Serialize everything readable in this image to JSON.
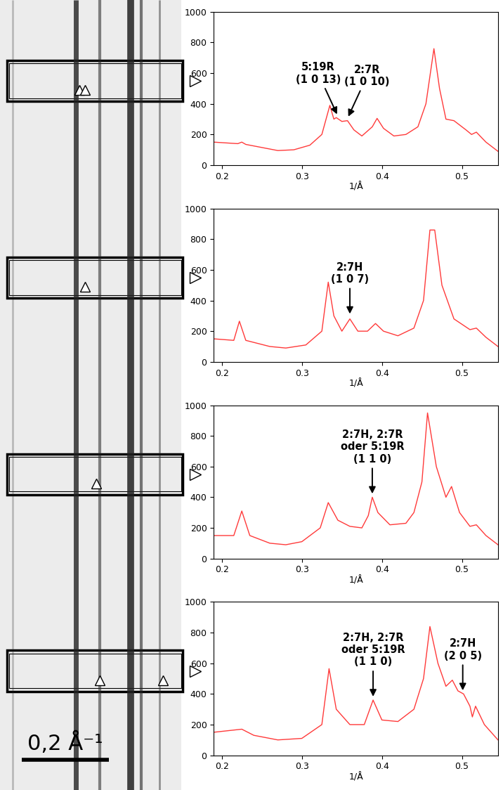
{
  "image_panel": {
    "scale_bar": "0,2 Å⁻¹"
  },
  "chart_data": [
    {
      "type": "line",
      "color": "#ff3a3a",
      "x_label": "1/Å",
      "xlim": [
        0.19,
        0.545
      ],
      "xticks": [
        0.2,
        0.3,
        0.4,
        0.5
      ],
      "ylim": [
        0,
        1000
      ],
      "yticks": [
        0,
        200,
        400,
        600,
        800,
        1000
      ],
      "x": [
        0.19,
        0.22,
        0.225,
        0.23,
        0.27,
        0.29,
        0.31,
        0.325,
        0.335,
        0.34,
        0.343,
        0.35,
        0.357,
        0.365,
        0.375,
        0.388,
        0.394,
        0.402,
        0.415,
        0.43,
        0.445,
        0.455,
        0.465,
        0.472,
        0.48,
        0.49,
        0.505,
        0.512,
        0.518,
        0.53,
        0.545
      ],
      "values": [
        150,
        140,
        150,
        135,
        95,
        100,
        130,
        200,
        390,
        300,
        310,
        285,
        290,
        230,
        190,
        250,
        305,
        240,
        190,
        200,
        250,
        400,
        760,
        500,
        300,
        290,
        230,
        200,
        215,
        150,
        90
      ],
      "annotations": [
        {
          "text": "5:19R\n(1 0 13)",
          "x": 0.345,
          "y": 320
        },
        {
          "text": "2:7R\n(1 0 10)",
          "x": 0.357,
          "y": 305
        }
      ]
    },
    {
      "type": "line",
      "color": "#ff3a3a",
      "x_label": "1/Å",
      "xlim": [
        0.19,
        0.545
      ],
      "xticks": [
        0.2,
        0.3,
        0.4,
        0.5
      ],
      "ylim": [
        0,
        1000
      ],
      "yticks": [
        0,
        200,
        400,
        600,
        800,
        1000
      ],
      "x": [
        0.19,
        0.215,
        0.222,
        0.23,
        0.26,
        0.28,
        0.305,
        0.325,
        0.333,
        0.34,
        0.35,
        0.36,
        0.37,
        0.382,
        0.392,
        0.402,
        0.42,
        0.44,
        0.452,
        0.46,
        0.466,
        0.475,
        0.49,
        0.51,
        0.518,
        0.53,
        0.545
      ],
      "values": [
        150,
        140,
        265,
        140,
        100,
        90,
        110,
        200,
        520,
        300,
        200,
        280,
        200,
        200,
        250,
        200,
        170,
        220,
        400,
        860,
        860,
        500,
        280,
        210,
        220,
        160,
        100
      ],
      "annotations": [
        {
          "text": "2:7H\n(1 0 7)",
          "x": 0.36,
          "y": 300
        }
      ]
    },
    {
      "type": "line",
      "color": "#ff3a3a",
      "x_label": "1/Å",
      "xlim": [
        0.19,
        0.545
      ],
      "xticks": [
        0.2,
        0.3,
        0.4,
        0.5
      ],
      "ylim": [
        0,
        1000
      ],
      "yticks": [
        0,
        200,
        400,
        600,
        800,
        1000
      ],
      "x": [
        0.19,
        0.215,
        0.225,
        0.235,
        0.26,
        0.28,
        0.3,
        0.323,
        0.333,
        0.345,
        0.36,
        0.375,
        0.383,
        0.388,
        0.395,
        0.41,
        0.43,
        0.44,
        0.45,
        0.457,
        0.468,
        0.48,
        0.487,
        0.497,
        0.51,
        0.518,
        0.53,
        0.545
      ],
      "values": [
        150,
        150,
        310,
        150,
        100,
        90,
        110,
        200,
        365,
        250,
        210,
        200,
        280,
        400,
        300,
        220,
        230,
        300,
        500,
        950,
        600,
        400,
        470,
        300,
        210,
        220,
        150,
        90
      ],
      "annotations": [
        {
          "text": "2:7H, 2:7R\noder 5:19R\n(1 1 0)",
          "x": 0.388,
          "y": 410
        }
      ]
    },
    {
      "type": "line",
      "color": "#ff3a3a",
      "x_label": "1/Å",
      "xlim": [
        0.19,
        0.545
      ],
      "xticks": [
        0.2,
        0.3,
        0.4,
        0.5
      ],
      "ylim": [
        0,
        1000
      ],
      "yticks": [
        0,
        200,
        400,
        600,
        800,
        1000
      ],
      "x": [
        0.19,
        0.225,
        0.24,
        0.27,
        0.3,
        0.325,
        0.334,
        0.343,
        0.36,
        0.378,
        0.389,
        0.4,
        0.42,
        0.44,
        0.452,
        0.46,
        0.47,
        0.48,
        0.488,
        0.495,
        0.502,
        0.51,
        0.513,
        0.517,
        0.528,
        0.545
      ],
      "values": [
        150,
        170,
        130,
        100,
        110,
        200,
        565,
        300,
        200,
        200,
        360,
        230,
        220,
        300,
        500,
        840,
        600,
        450,
        490,
        420,
        400,
        320,
        250,
        320,
        200,
        100
      ],
      "annotations": [
        {
          "text": "2:7H, 2:7R\noder 5:19R\n(1 1 0)",
          "x": 0.389,
          "y": 370
        },
        {
          "text": "2:7H\n(2 0 5)",
          "x": 0.501,
          "y": 410
        }
      ]
    }
  ]
}
